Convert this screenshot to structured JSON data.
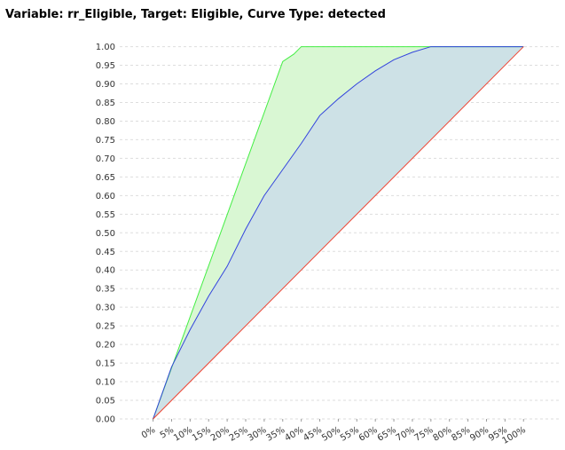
{
  "chart_data": {
    "type": "line",
    "title": "Variable: rr_Eligible, Target: Eligible, Curve Type: detected",
    "grid": true,
    "xlim": [
      -9,
      110
    ],
    "ylim": [
      0,
      1.03
    ],
    "xticks": [
      {
        "value": 0,
        "label": "0%"
      },
      {
        "value": 5,
        "label": "5%"
      },
      {
        "value": 10,
        "label": "10%"
      },
      {
        "value": 15,
        "label": "15%"
      },
      {
        "value": 20,
        "label": "20%"
      },
      {
        "value": 25,
        "label": "25%"
      },
      {
        "value": 30,
        "label": "30%"
      },
      {
        "value": 35,
        "label": "35%"
      },
      {
        "value": 40,
        "label": "40%"
      },
      {
        "value": 45,
        "label": "45%"
      },
      {
        "value": 50,
        "label": "50%"
      },
      {
        "value": 55,
        "label": "55%"
      },
      {
        "value": 60,
        "label": "60%"
      },
      {
        "value": 65,
        "label": "65%"
      },
      {
        "value": 70,
        "label": "70%"
      },
      {
        "value": 75,
        "label": "75%"
      },
      {
        "value": 80,
        "label": "80%"
      },
      {
        "value": 85,
        "label": "85%"
      },
      {
        "value": 90,
        "label": "90%"
      },
      {
        "value": 95,
        "label": "95%"
      },
      {
        "value": 100,
        "label": "100%"
      }
    ],
    "yticks": [
      {
        "value": 0,
        "label": "0.00"
      },
      {
        "value": 0.05,
        "label": "0.05"
      },
      {
        "value": 0.1,
        "label": "0.10"
      },
      {
        "value": 0.15,
        "label": "0.15"
      },
      {
        "value": 0.2,
        "label": "0.20"
      },
      {
        "value": 0.25,
        "label": "0.25"
      },
      {
        "value": 0.3,
        "label": "0.30"
      },
      {
        "value": 0.35,
        "label": "0.35"
      },
      {
        "value": 0.4,
        "label": "0.40"
      },
      {
        "value": 0.45,
        "label": "0.45"
      },
      {
        "value": 0.5,
        "label": "0.50"
      },
      {
        "value": 0.55,
        "label": "0.55"
      },
      {
        "value": 0.6,
        "label": "0.60"
      },
      {
        "value": 0.65,
        "label": "0.65"
      },
      {
        "value": 0.7,
        "label": "0.70"
      },
      {
        "value": 0.75,
        "label": "0.75"
      },
      {
        "value": 0.8,
        "label": "0.80"
      },
      {
        "value": 0.85,
        "label": "0.85"
      },
      {
        "value": 0.9,
        "label": "0.90"
      },
      {
        "value": 0.95,
        "label": "0.95"
      },
      {
        "value": 1,
        "label": "1.00"
      }
    ],
    "series": [
      {
        "color": "#44ee44",
        "fill": "#d9f7d3",
        "x": [
          0,
          35,
          38,
          40,
          100
        ],
        "values": [
          0,
          0.96,
          0.98,
          1,
          1
        ]
      },
      {
        "color": "#3344dd",
        "fill": "#cde1e6",
        "x": [
          0,
          5,
          10,
          15,
          20,
          25,
          30,
          35,
          40,
          45,
          50,
          55,
          60,
          65,
          70,
          75,
          100
        ],
        "values": [
          0,
          0.14,
          0.24,
          0.33,
          0.41,
          0.51,
          0.6,
          0.67,
          0.74,
          0.815,
          0.86,
          0.9,
          0.935,
          0.965,
          0.985,
          1,
          1
        ]
      },
      {
        "color": "#ee4433",
        "x": [
          0,
          100
        ],
        "values": [
          0,
          1
        ]
      }
    ]
  }
}
